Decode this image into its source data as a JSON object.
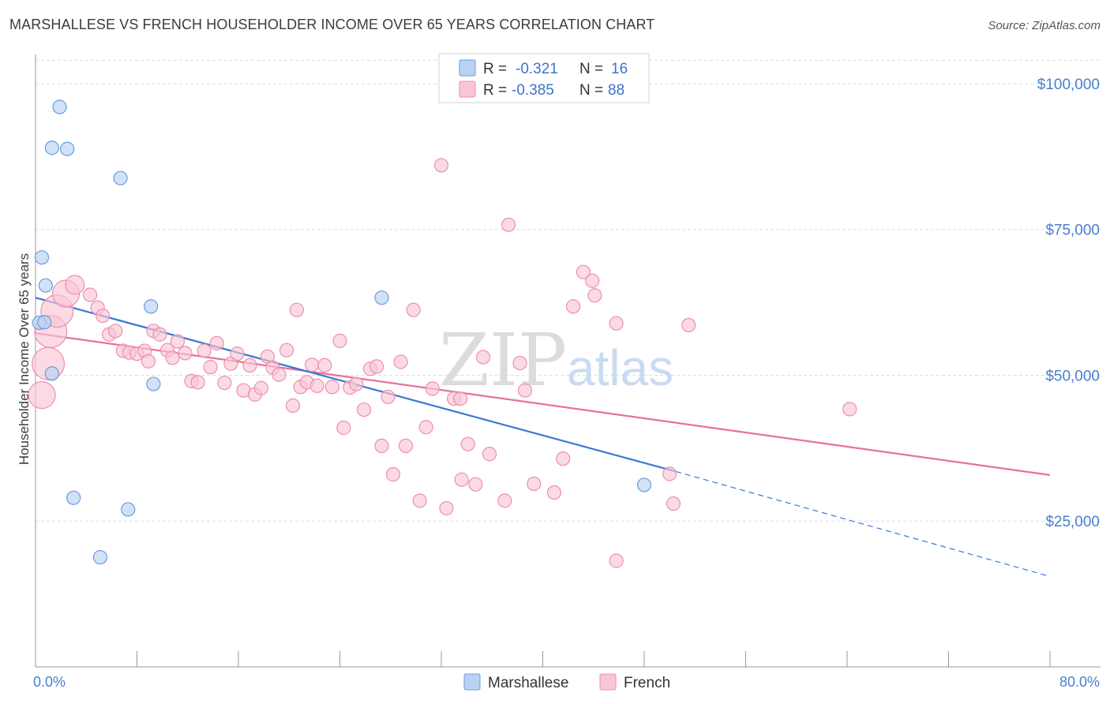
{
  "header": {
    "title": "MARSHALLESE VS FRENCH HOUSEHOLDER INCOME OVER 65 YEARS CORRELATION CHART",
    "source": "Source: ZipAtlas.com"
  },
  "legend": {
    "r_label": "R =",
    "n_label": "N =",
    "series": [
      {
        "name": "Marshallese",
        "r": "-0.321",
        "n": "16"
      },
      {
        "name": "French",
        "r": "-0.385",
        "n": "88"
      }
    ]
  },
  "watermark": {
    "zip": "ZIP",
    "atlas": "atlas"
  },
  "colors": {
    "marshallese_fill": "#b9d2f3",
    "marshallese_stroke": "#6a9be0",
    "marshallese_line": "#3a78d4",
    "french_fill": "#f9c6d6",
    "french_stroke": "#ec8fae",
    "french_line": "#e8709a",
    "tick_text": "#4a7fd0",
    "grid": "#dddddd"
  },
  "chart_data": {
    "type": "scatter",
    "title": "MARSHALLESE VS FRENCH HOUSEHOLDER INCOME OVER 65 YEARS CORRELATION CHART",
    "xlabel": "",
    "ylabel": "Householder Income Over 65 years",
    "xlim": [
      0,
      80
    ],
    "ylim": [
      0,
      105000
    ],
    "x_tick_labels": [
      "0.0%",
      "80.0%"
    ],
    "y_ticks": [
      25000,
      50000,
      75000,
      100000
    ],
    "y_tick_labels": [
      "$25,000",
      "$50,000",
      "$75,000",
      "$100,000"
    ],
    "series": [
      {
        "name": "Marshallese",
        "points": [
          [
            1.9,
            96000,
            1
          ],
          [
            1.3,
            89000,
            1
          ],
          [
            2.5,
            88800,
            1
          ],
          [
            6.7,
            83800,
            1
          ],
          [
            0.5,
            70200,
            1
          ],
          [
            0.8,
            65400,
            1
          ],
          [
            0.3,
            59000,
            1
          ],
          [
            0.7,
            59100,
            1
          ],
          [
            9.1,
            61800,
            1
          ],
          [
            1.3,
            50300,
            1
          ],
          [
            9.3,
            48500,
            1
          ],
          [
            27.3,
            63300,
            1
          ],
          [
            3.0,
            29000,
            1
          ],
          [
            7.3,
            27000,
            1
          ],
          [
            5.1,
            18800,
            1
          ],
          [
            48.0,
            31200,
            1
          ]
        ],
        "trend": {
          "x0": 0,
          "y0": 63300,
          "x1": 50.5,
          "y1": 33500
        },
        "trend_dashed": {
          "x0": 50.5,
          "y0": 33500,
          "x1": 80,
          "y1": 15500
        }
      },
      {
        "name": "French",
        "points": [
          [
            0.5,
            46600,
            2
          ],
          [
            1.0,
            52000,
            2.4
          ],
          [
            1.2,
            57500,
            2.4
          ],
          [
            1.7,
            61000,
            2.4
          ],
          [
            2.4,
            64000,
            2
          ],
          [
            3.1,
            65500,
            1.4
          ],
          [
            4.3,
            63800,
            1
          ],
          [
            4.9,
            61600,
            1
          ],
          [
            5.3,
            60200,
            1
          ],
          [
            5.8,
            57000,
            1
          ],
          [
            6.3,
            57600,
            1
          ],
          [
            6.9,
            54200,
            1
          ],
          [
            7.4,
            53900,
            1
          ],
          [
            8.0,
            53700,
            1
          ],
          [
            8.6,
            54200,
            1
          ],
          [
            8.9,
            52400,
            1
          ],
          [
            9.3,
            57600,
            1
          ],
          [
            9.8,
            57000,
            1
          ],
          [
            10.4,
            54300,
            1
          ],
          [
            10.8,
            53000,
            1
          ],
          [
            11.2,
            55800,
            1
          ],
          [
            11.8,
            53800,
            1
          ],
          [
            12.3,
            49000,
            1
          ],
          [
            12.8,
            48800,
            1
          ],
          [
            13.3,
            54200,
            1
          ],
          [
            13.8,
            51400,
            1
          ],
          [
            14.3,
            55500,
            1
          ],
          [
            14.9,
            48700,
            1
          ],
          [
            15.4,
            52000,
            1
          ],
          [
            15.9,
            53700,
            1
          ],
          [
            16.4,
            47400,
            1
          ],
          [
            16.9,
            51700,
            1
          ],
          [
            17.3,
            46700,
            1
          ],
          [
            17.8,
            47800,
            1
          ],
          [
            18.3,
            53200,
            1
          ],
          [
            18.7,
            51300,
            1
          ],
          [
            19.2,
            50100,
            1
          ],
          [
            19.8,
            54300,
            1
          ],
          [
            20.3,
            44800,
            1
          ],
          [
            20.6,
            61200,
            1
          ],
          [
            20.9,
            48000,
            1
          ],
          [
            21.4,
            48800,
            1
          ],
          [
            21.8,
            51800,
            1
          ],
          [
            22.2,
            48200,
            1
          ],
          [
            22.8,
            51700,
            1
          ],
          [
            23.4,
            48000,
            1
          ],
          [
            24.0,
            55900,
            1
          ],
          [
            24.3,
            41000,
            1
          ],
          [
            24.8,
            47900,
            1
          ],
          [
            25.3,
            48500,
            1
          ],
          [
            25.9,
            44100,
            1
          ],
          [
            26.4,
            51100,
            1
          ],
          [
            26.9,
            51500,
            1
          ],
          [
            27.3,
            37900,
            1
          ],
          [
            27.8,
            46300,
            1
          ],
          [
            28.2,
            33000,
            1
          ],
          [
            28.8,
            52300,
            1
          ],
          [
            29.2,
            37900,
            1
          ],
          [
            29.8,
            61200,
            1
          ],
          [
            30.3,
            28500,
            1
          ],
          [
            30.8,
            41100,
            1
          ],
          [
            31.3,
            47700,
            1
          ],
          [
            32.0,
            86000,
            1
          ],
          [
            32.4,
            27200,
            1
          ],
          [
            33.0,
            46000,
            1
          ],
          [
            33.6,
            32100,
            1
          ],
          [
            34.1,
            38200,
            1
          ],
          [
            34.7,
            31300,
            1
          ],
          [
            35.3,
            53100,
            1
          ],
          [
            35.8,
            36500,
            1
          ],
          [
            37.0,
            28500,
            1
          ],
          [
            37.3,
            75800,
            1
          ],
          [
            38.2,
            52100,
            1
          ],
          [
            38.6,
            47400,
            1
          ],
          [
            39.3,
            31400,
            1
          ],
          [
            40.9,
            29900,
            1
          ],
          [
            41.6,
            35700,
            1
          ],
          [
            42.4,
            61800,
            1
          ],
          [
            43.2,
            67700,
            1
          ],
          [
            43.9,
            66200,
            1
          ],
          [
            44.1,
            63700,
            1
          ],
          [
            45.8,
            58900,
            1
          ],
          [
            45.8,
            18200,
            1
          ],
          [
            50.0,
            33100,
            1
          ],
          [
            50.3,
            28000,
            1
          ],
          [
            51.5,
            58600,
            1
          ],
          [
            64.2,
            44200,
            1
          ],
          [
            33.5,
            46000,
            1
          ]
        ],
        "trend": {
          "x0": 0,
          "y0": 57200,
          "x1": 80,
          "y1": 32900
        }
      }
    ],
    "bottom_legend": [
      "Marshallese",
      "French"
    ]
  }
}
